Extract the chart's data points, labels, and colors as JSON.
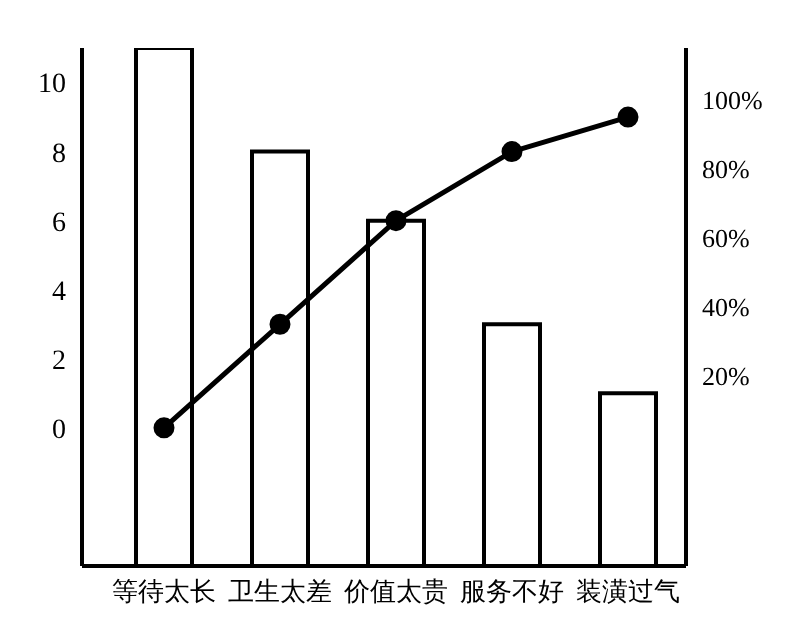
{
  "chart_data": {
    "type": "bar",
    "categories": [
      "等待太长",
      "卫生太差",
      "价值太贵",
      "服务不好",
      "装潢过气"
    ],
    "series": [
      {
        "color": "#ffffff",
        "values": [
          15,
          12,
          10,
          7,
          5
        ],
        "base": [
          -4,
          -4,
          -4,
          -4,
          -4
        ]
      },
      {
        "type": "line",
        "color": "#000000",
        "axis": "y2",
        "values": [
          5,
          35,
          65,
          85,
          95
        ],
        "marker": "circle"
      }
    ],
    "ylim": [
      -4,
      11
    ],
    "yticks": [
      0,
      2,
      4,
      6,
      8,
      10
    ],
    "y2lim": [
      -35,
      115
    ],
    "y2ticks": [
      {
        "value": 20,
        "label": "20%"
      },
      {
        "value": 40,
        "label": "40%"
      },
      {
        "value": 60,
        "label": "60%"
      },
      {
        "value": 80,
        "label": "80%"
      },
      {
        "value": 100,
        "label": "100%"
      }
    ],
    "grid": false,
    "legend": false
  }
}
